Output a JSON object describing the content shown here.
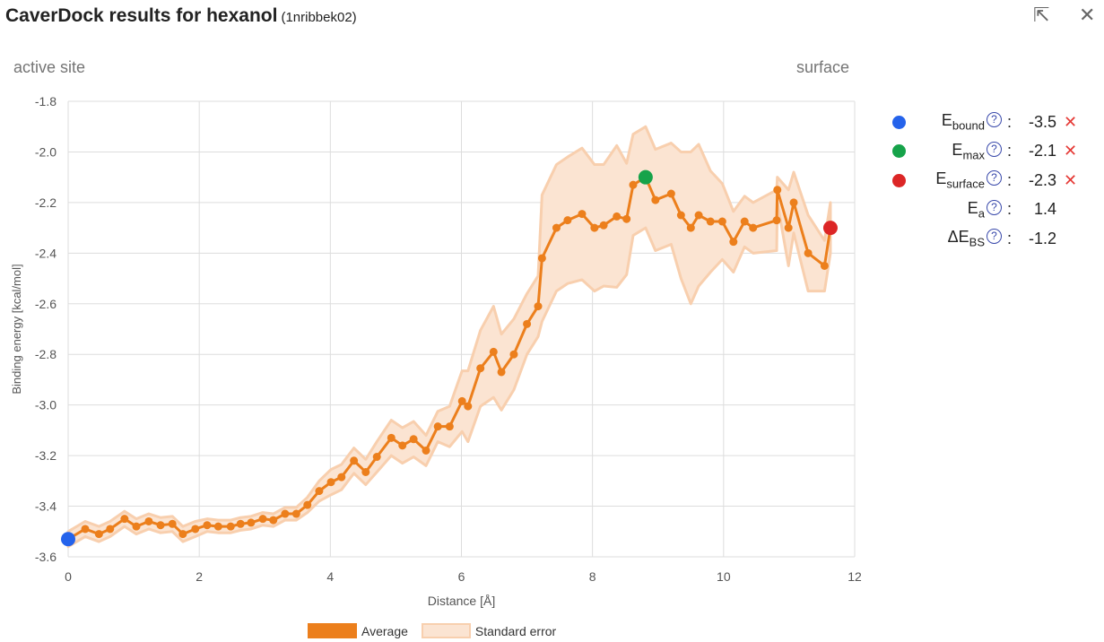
{
  "header": {
    "title": "CaverDock results for hexanol",
    "subtitle": "(1nribbek02)",
    "icons": [
      "expand-icon",
      "close-icon"
    ]
  },
  "labels": {
    "left": "active site",
    "right": "surface"
  },
  "summary": [
    {
      "name": "E",
      "sub": "bound",
      "value": "-3.5",
      "color": "#2563eb",
      "removable": true
    },
    {
      "name": "E",
      "sub": "max",
      "value": "-2.1",
      "color": "#16a34a",
      "removable": true
    },
    {
      "name": "E",
      "sub": "surface",
      "value": "-2.3",
      "color": "#dc2626",
      "removable": true
    },
    {
      "name": "E",
      "sub": "a",
      "value": "1.4",
      "color": "",
      "removable": false
    },
    {
      "name": "ΔE",
      "sub": "BS",
      "value": "-1.2",
      "color": "",
      "removable": false
    }
  ],
  "remove_glyph": "✕",
  "help_glyph": "?",
  "separator": ":",
  "chart_data": {
    "type": "line",
    "xlabel": "Distance [Å]",
    "ylabel": "Binding energy [kcal/mol]",
    "xlim": [
      0,
      12
    ],
    "ylim": [
      -3.6,
      -1.8
    ],
    "xticks": [
      "0",
      "2",
      "4",
      "6",
      "8",
      "10",
      "12"
    ],
    "yticks": [
      "-1.8",
      "-2.0",
      "-2.2",
      "-2.4",
      "-2.6",
      "-2.8",
      "-3.0",
      "-3.2",
      "-3.4",
      "-3.6"
    ],
    "grid": true,
    "colors": {
      "average": "#ec7f1c",
      "band": "#fbe4d2",
      "band_edge": "#f8cfae"
    },
    "legend": [
      "Average",
      "Standard error"
    ],
    "legend_position": "bottom",
    "x": [
      0,
      0.26,
      0.47,
      0.64,
      0.86,
      1.04,
      1.23,
      1.41,
      1.59,
      1.75,
      1.94,
      2.12,
      2.29,
      2.48,
      2.63,
      2.79,
      2.97,
      3.13,
      3.31,
      3.48,
      3.65,
      3.83,
      4.01,
      4.17,
      4.36,
      4.54,
      4.71,
      4.93,
      5.1,
      5.27,
      5.46,
      5.64,
      5.82,
      6.01,
      6.1,
      6.29,
      6.49,
      6.61,
      6.8,
      7.0,
      7.17,
      7.23,
      7.45,
      7.62,
      7.84,
      8.03,
      8.17,
      8.37,
      8.52,
      8.62,
      8.81,
      8.96,
      9.2,
      9.35,
      9.5,
      9.62,
      9.8,
      9.98,
      10.15,
      10.32,
      10.45,
      10.81,
      10.82,
      10.99,
      11.07,
      11.29,
      11.54,
      11.63
    ],
    "average": [
      -3.53,
      -3.49,
      -3.51,
      -3.49,
      -3.45,
      -3.48,
      -3.46,
      -3.475,
      -3.47,
      -3.51,
      -3.49,
      -3.475,
      -3.48,
      -3.48,
      -3.47,
      -3.465,
      -3.45,
      -3.455,
      -3.43,
      -3.43,
      -3.395,
      -3.34,
      -3.305,
      -3.285,
      -3.22,
      -3.265,
      -3.205,
      -3.13,
      -3.16,
      -3.135,
      -3.18,
      -3.085,
      -3.085,
      -2.985,
      -3.005,
      -2.855,
      -2.79,
      -2.87,
      -2.8,
      -2.68,
      -2.61,
      -2.42,
      -2.3,
      -2.27,
      -2.245,
      -2.3,
      -2.29,
      -2.255,
      -2.265,
      -2.13,
      -2.1,
      -2.19,
      -2.165,
      -2.25,
      -2.3,
      -2.25,
      -2.275,
      -2.275,
      -2.355,
      -2.275,
      -2.3,
      -2.27,
      -2.15,
      -2.3,
      -2.2,
      -2.4,
      -2.45,
      -2.3
    ],
    "std_error": [
      0.03,
      0.03,
      0.03,
      0.03,
      0.03,
      0.03,
      0.03,
      0.03,
      0.03,
      0.03,
      0.03,
      0.025,
      0.025,
      0.025,
      0.025,
      0.025,
      0.025,
      0.025,
      0.025,
      0.025,
      0.03,
      0.04,
      0.05,
      0.05,
      0.05,
      0.05,
      0.06,
      0.07,
      0.07,
      0.07,
      0.06,
      0.06,
      0.08,
      0.12,
      0.14,
      0.15,
      0.18,
      0.15,
      0.14,
      0.12,
      0.12,
      0.25,
      0.25,
      0.25,
      0.26,
      0.25,
      0.24,
      0.28,
      0.22,
      0.2,
      0.2,
      0.2,
      0.2,
      0.25,
      0.3,
      0.28,
      0.2,
      0.15,
      0.12,
      0.1,
      0.1,
      0.12,
      0.05,
      0.15,
      0.12,
      0.15,
      0.1,
      0.1
    ],
    "markers": [
      {
        "label": "E_bound",
        "x": 0,
        "y": -3.53,
        "color": "#2563eb"
      },
      {
        "label": "E_max",
        "x": 8.81,
        "y": -2.1,
        "color": "#16a34a"
      },
      {
        "label": "E_surface",
        "x": 11.63,
        "y": -2.3,
        "color": "#dc2626"
      }
    ]
  }
}
